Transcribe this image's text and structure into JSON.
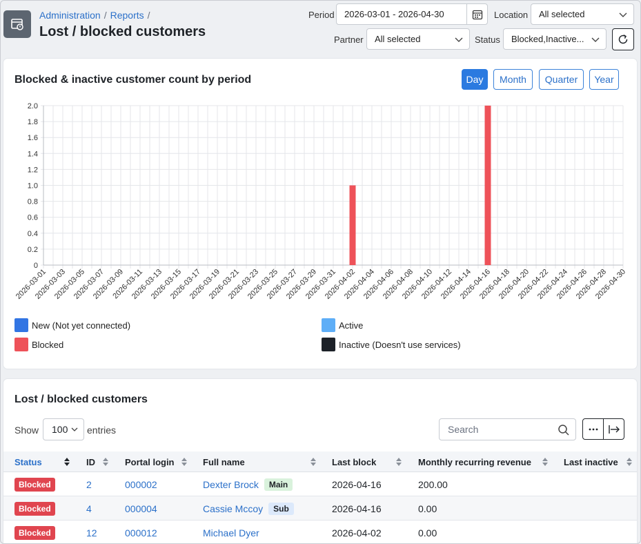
{
  "header": {
    "breadcrumb": [
      "Administration",
      "Reports"
    ],
    "title": "Lost / blocked customers",
    "filters": {
      "period_label": "Period",
      "period_value": "2026-03-01 - 2026-04-30",
      "location_label": "Location",
      "location_value": "All selected",
      "partner_label": "Partner",
      "partner_value": "All selected",
      "status_label": "Status",
      "status_value": "Blocked,Inactive..."
    }
  },
  "chart_card": {
    "title": "Blocked & inactive customer count by period",
    "period_buttons": [
      {
        "label": "Day",
        "active": true
      },
      {
        "label": "Month",
        "active": false
      },
      {
        "label": "Quarter",
        "active": false
      },
      {
        "label": "Year",
        "active": false
      }
    ],
    "legend": [
      {
        "label": "New (Not yet connected)",
        "color": "#3275e3"
      },
      {
        "label": "Active",
        "color": "#5eaef7"
      },
      {
        "label": "Blocked",
        "color": "#ee5259"
      },
      {
        "label": "Inactive (Doesn't use services)",
        "color": "#1c2128"
      }
    ]
  },
  "chart_data": {
    "type": "bar",
    "start_date": "2026-03-01",
    "end_date": "2026-04-30",
    "x_tick_labels": [
      "2026-03-01",
      "2026-03-03",
      "2026-03-05",
      "2026-03-07",
      "2026-03-09",
      "2026-03-11",
      "2026-03-13",
      "2026-03-15",
      "2026-03-17",
      "2026-03-19",
      "2026-03-21",
      "2026-03-23",
      "2026-03-25",
      "2026-03-27",
      "2026-03-29",
      "2026-03-31",
      "2026-04-02",
      "2026-04-04",
      "2026-04-06",
      "2026-04-08",
      "2026-04-10",
      "2026-04-12",
      "2026-04-14",
      "2026-04-16",
      "2026-04-18",
      "2026-04-20",
      "2026-04-22",
      "2026-04-24",
      "2026-04-26",
      "2026-04-28",
      "2026-04-30"
    ],
    "series": [
      {
        "name": "Blocked",
        "color": "#ee5259",
        "points": [
          {
            "x": "2026-04-02",
            "y": 1
          },
          {
            "x": "2026-04-16",
            "y": 2
          }
        ]
      }
    ],
    "y_ticks": [
      "0",
      "0.2",
      "0.4",
      "0.6",
      "0.8",
      "1.0",
      "1.2",
      "1.4",
      "1.6",
      "1.8",
      "2.0"
    ],
    "ylim": [
      0,
      2
    ],
    "grid": true,
    "legend_position": "bottom"
  },
  "table_card": {
    "title": "Lost / blocked customers",
    "show_label": "Show",
    "entries_value": "100",
    "entries_label": "entries",
    "search_placeholder": "Search",
    "columns": [
      "Status",
      "ID",
      "Portal login",
      "Full name",
      "Last block",
      "Monthly recurring revenue",
      "Last inactive"
    ],
    "rows": [
      {
        "status": "Blocked",
        "id": "2",
        "login": "000002",
        "name": "Dexter Brock",
        "tag": "Main",
        "last_block": "2026-04-16",
        "mrr": "200.00",
        "last_inactive": ""
      },
      {
        "status": "Blocked",
        "id": "4",
        "login": "000004",
        "name": "Cassie Mccoy",
        "tag": "Sub",
        "last_block": "2026-04-16",
        "mrr": "0.00",
        "last_inactive": ""
      },
      {
        "status": "Blocked",
        "id": "12",
        "login": "000012",
        "name": "Michael Dyer",
        "tag": "",
        "last_block": "2026-04-02",
        "mrr": "0.00",
        "last_inactive": ""
      }
    ]
  }
}
